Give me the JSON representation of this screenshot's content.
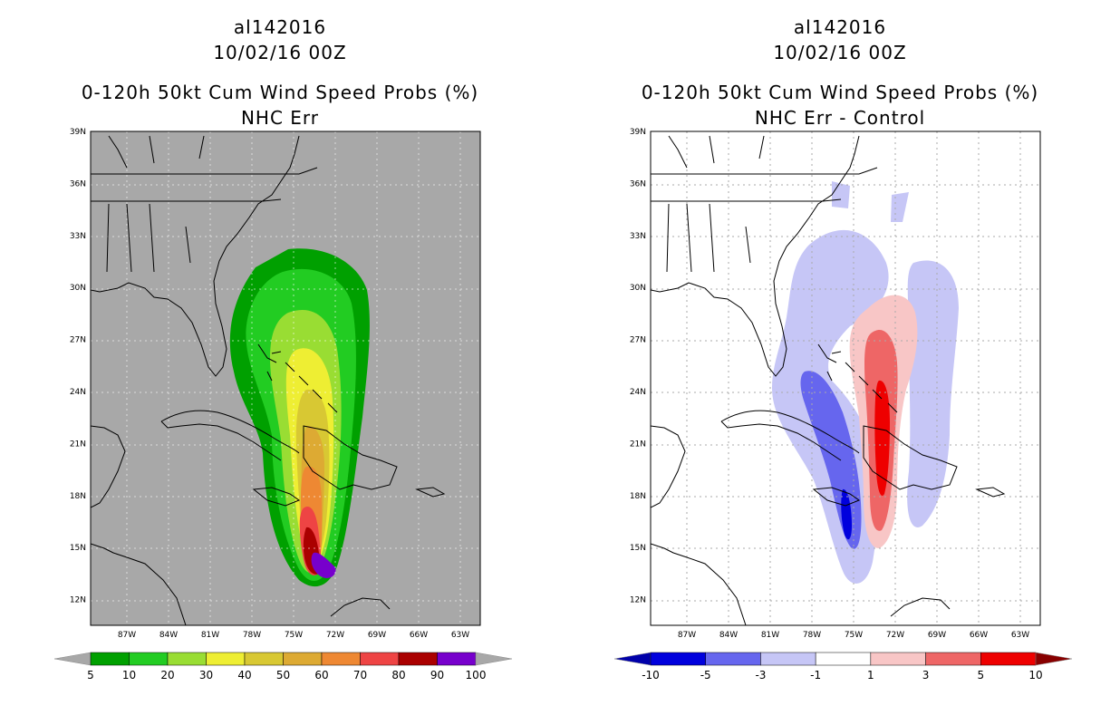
{
  "left_panel": {
    "storm_id": "al142016",
    "datetime": "10/02/16 00Z",
    "product": "0-120h 50kt Cum Wind Speed Probs (%)",
    "subtitle": "NHC Err",
    "background_color": "#a8a8a8",
    "colorbar": {
      "labels": [
        "5",
        "10",
        "20",
        "30",
        "40",
        "50",
        "60",
        "70",
        "80",
        "90",
        "100"
      ],
      "colors": [
        "#00a000",
        "#22cc22",
        "#99dd33",
        "#eeee33",
        "#d8c833",
        "#ddaa33",
        "#ee8833",
        "#ee4444",
        "#aa0000",
        "#7700cc"
      ],
      "under_color": "#a8a8a8",
      "over_color": "#a8a8a8"
    }
  },
  "right_panel": {
    "storm_id": "al142016",
    "datetime": "10/02/16 00Z",
    "product": "0-120h 50kt Cum Wind Speed Probs (%)",
    "subtitle": "NHC Err - Control",
    "background_color": "#ffffff",
    "colorbar": {
      "labels": [
        "-10",
        "-5",
        "-3",
        "-1",
        "1",
        "3",
        "5",
        "10"
      ],
      "colors": [
        "#0000dd",
        "#6666ee",
        "#c6c6f6",
        "#ffffff",
        "#f8c6c6",
        "#ee6666",
        "#ee0000"
      ],
      "under_color": "#0000aa",
      "over_color": "#880000"
    }
  },
  "axes": {
    "lat_labels": [
      "39N",
      "36N",
      "33N",
      "30N",
      "27N",
      "24N",
      "21N",
      "18N",
      "15N",
      "12N"
    ],
    "lon_labels": [
      "87W",
      "84W",
      "81W",
      "78W",
      "75W",
      "72W",
      "69W",
      "66W",
      "63W"
    ]
  }
}
